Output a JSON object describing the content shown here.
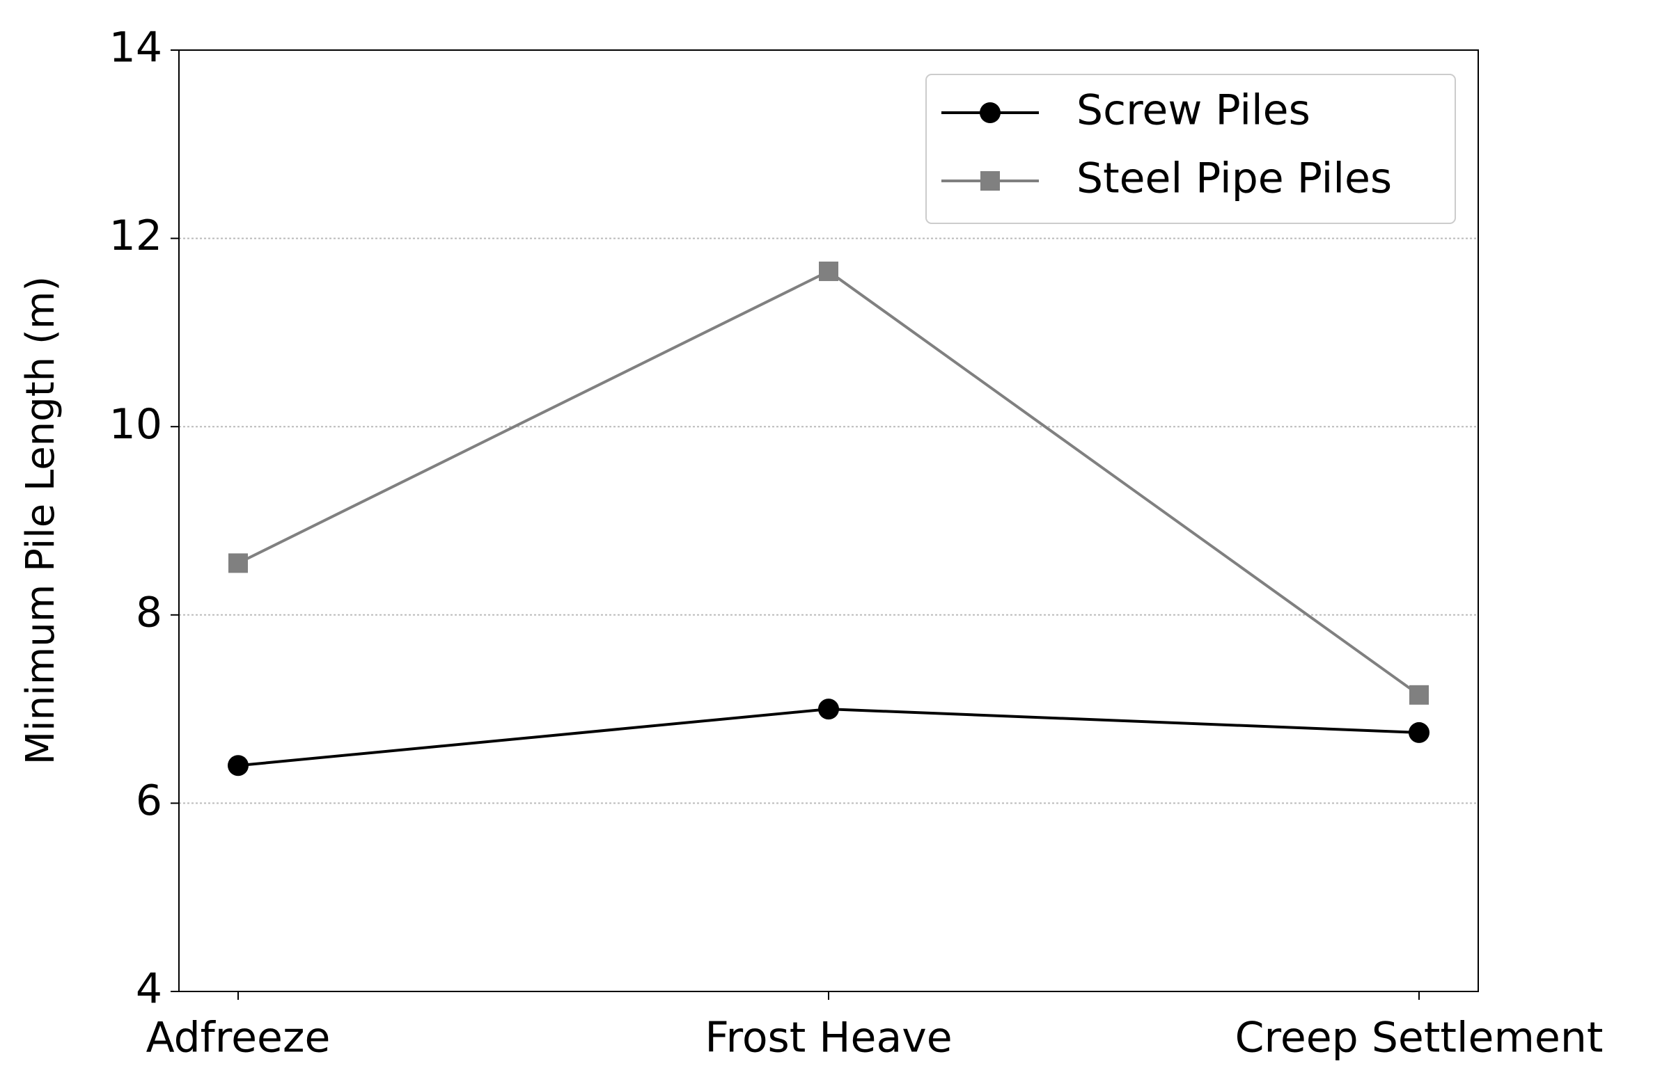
{
  "chart_data": {
    "type": "line",
    "y_label": "Minimum Pile Length (m)",
    "categories": [
      "Adfreeze",
      "Frost Heave",
      "Creep Settlement"
    ],
    "series": [
      {
        "name": "Screw Piles",
        "color": "#000000",
        "marker": "circle",
        "values": [
          6.4,
          7.0,
          6.75
        ]
      },
      {
        "name": "Steel Pipe Piles",
        "color": "#808080",
        "marker": "square",
        "values": [
          8.55,
          11.65,
          7.15
        ]
      }
    ],
    "ylim": [
      4,
      14
    ],
    "yticks": [
      4,
      6,
      8,
      10,
      12,
      14
    ],
    "grid": true,
    "legend": "upper right"
  }
}
